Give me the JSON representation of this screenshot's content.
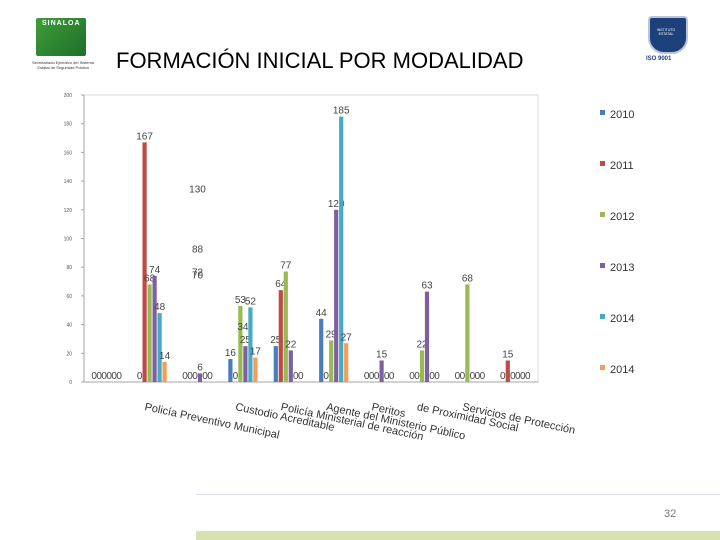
{
  "header": {
    "title": "FORMACIÓN INICIAL POR MODALIDAD",
    "left_logo": {
      "brand": "SINALOA",
      "sub": "Secretariado Ejecutivo del Sistema Estatal de Seguridad Pública"
    },
    "right_logo": {
      "text": "INSTITUTO ESTATAL",
      "iso": "ISO 9001"
    }
  },
  "chart_data": {
    "type": "bar",
    "title": "",
    "xlabel": "",
    "ylabel": "",
    "ylim": [
      0,
      200
    ],
    "yticks": [
      0,
      20,
      40,
      60,
      80,
      100,
      120,
      140,
      160,
      180,
      200
    ],
    "grid": false,
    "legend_position": "right",
    "categories": [
      "",
      "Policía Preventivo Municipal",
      "",
      "Custodio Acreditable",
      "Policía Ministerial de reacción",
      "Agente del Ministerio Público",
      "Peritos",
      "de Proximidad Social",
      "Servicios de Protección",
      ""
    ],
    "colors": [
      "#4a7ebb",
      "#be4b48",
      "#98b954",
      "#7d60a0",
      "#46aac5",
      "#f59d56"
    ],
    "series": [
      {
        "name": "2010",
        "values": [
          0,
          0,
          0,
          16,
          25,
          44,
          0,
          0,
          0,
          0
        ]
      },
      {
        "name": "2011",
        "values": [
          0,
          167,
          0,
          0,
          64,
          0,
          0,
          0,
          0,
          15
        ]
      },
      {
        "name": "2012",
        "values": [
          0,
          68,
          0,
          53,
          77,
          29,
          0,
          22,
          68,
          0
        ]
      },
      {
        "name": "2013",
        "values": [
          0,
          74,
          6,
          25,
          22,
          120,
          15,
          63,
          0,
          0
        ]
      },
      {
        "name": "2014",
        "values": [
          0,
          48,
          0,
          52,
          0,
          185,
          0,
          0,
          0,
          0
        ]
      },
      {
        "name": "2014",
        "values": [
          0,
          14,
          0,
          17,
          0,
          27,
          0,
          0,
          0,
          0
        ]
      }
    ],
    "extra_labels": [
      {
        "text": "130",
        "x": 2,
        "y": 130
      },
      {
        "text": "88",
        "x": 2,
        "y": 88
      },
      {
        "text": "72",
        "x": 2,
        "y": 72
      },
      {
        "text": "70",
        "x": 2,
        "y": 70
      },
      {
        "text": "34",
        "x": 3,
        "y": 34
      }
    ]
  },
  "footer": {
    "page_number": "32"
  }
}
